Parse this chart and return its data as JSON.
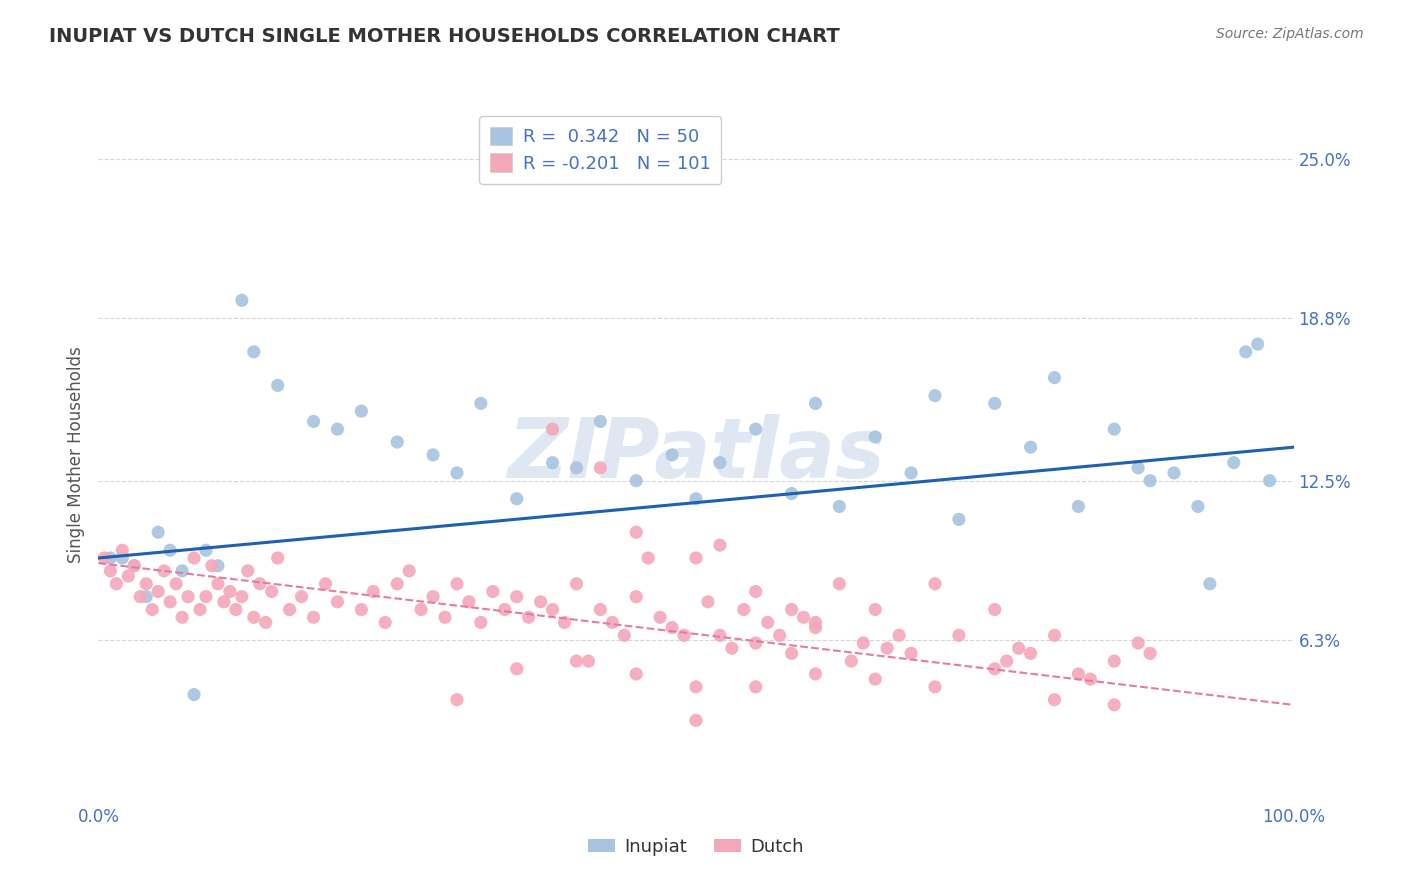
{
  "title": "INUPIAT VS DUTCH SINGLE MOTHER HOUSEHOLDS CORRELATION CHART",
  "source_text": "Source: ZipAtlas.com",
  "ylabel": "Single Mother Households",
  "xlim": [
    0,
    100
  ],
  "ylim": [
    0,
    27
  ],
  "yticks": [
    6.3,
    12.5,
    18.8,
    25.0
  ],
  "ytick_labels": [
    "6.3%",
    "12.5%",
    "18.8%",
    "25.0%"
  ],
  "xticks": [
    0,
    100
  ],
  "xtick_labels": [
    "0.0%",
    "100.0%"
  ],
  "inupiat_color": "#a8c4e0",
  "dutch_color": "#f4a7b9",
  "inupiat_line_color": "#2060b0",
  "dutch_line_color": "#e87aa0",
  "inupiat_r": "0.342",
  "inupiat_n": "50",
  "dutch_r": "-0.201",
  "dutch_n": "101",
  "inupiat_line_y0": 9.5,
  "inupiat_line_y1": 13.8,
  "dutch_line_y0": 9.3,
  "dutch_line_y1": 3.8,
  "inupiat_scatter": [
    [
      1,
      9.5
    ],
    [
      3,
      9.2
    ],
    [
      5,
      10.5
    ],
    [
      7,
      9.0
    ],
    [
      9,
      9.8
    ],
    [
      12,
      19.5
    ],
    [
      13,
      17.5
    ],
    [
      15,
      16.2
    ],
    [
      18,
      14.8
    ],
    [
      20,
      14.5
    ],
    [
      22,
      15.2
    ],
    [
      25,
      14.0
    ],
    [
      28,
      13.5
    ],
    [
      30,
      12.8
    ],
    [
      32,
      15.5
    ],
    [
      35,
      11.8
    ],
    [
      38,
      13.2
    ],
    [
      40,
      13.0
    ],
    [
      42,
      14.8
    ],
    [
      45,
      12.5
    ],
    [
      48,
      13.5
    ],
    [
      50,
      11.8
    ],
    [
      52,
      13.2
    ],
    [
      55,
      14.5
    ],
    [
      58,
      12.0
    ],
    [
      60,
      15.5
    ],
    [
      62,
      11.5
    ],
    [
      65,
      14.2
    ],
    [
      68,
      12.8
    ],
    [
      70,
      15.8
    ],
    [
      72,
      11.0
    ],
    [
      75,
      15.5
    ],
    [
      78,
      13.8
    ],
    [
      80,
      16.5
    ],
    [
      82,
      11.5
    ],
    [
      85,
      14.5
    ],
    [
      87,
      13.0
    ],
    [
      88,
      12.5
    ],
    [
      90,
      12.8
    ],
    [
      92,
      11.5
    ],
    [
      93,
      8.5
    ],
    [
      95,
      13.2
    ],
    [
      96,
      17.5
    ],
    [
      97,
      17.8
    ],
    [
      98,
      12.5
    ],
    [
      2,
      9.5
    ],
    [
      6,
      9.8
    ],
    [
      10,
      9.2
    ],
    [
      4,
      8.0
    ],
    [
      8,
      4.2
    ]
  ],
  "dutch_scatter": [
    [
      0.5,
      9.5
    ],
    [
      1,
      9.0
    ],
    [
      1.5,
      8.5
    ],
    [
      2,
      9.8
    ],
    [
      2.5,
      8.8
    ],
    [
      3,
      9.2
    ],
    [
      3.5,
      8.0
    ],
    [
      4,
      8.5
    ],
    [
      4.5,
      7.5
    ],
    [
      5,
      8.2
    ],
    [
      5.5,
      9.0
    ],
    [
      6,
      7.8
    ],
    [
      6.5,
      8.5
    ],
    [
      7,
      7.2
    ],
    [
      7.5,
      8.0
    ],
    [
      8,
      9.5
    ],
    [
      8.5,
      7.5
    ],
    [
      9,
      8.0
    ],
    [
      9.5,
      9.2
    ],
    [
      10,
      8.5
    ],
    [
      10.5,
      7.8
    ],
    [
      11,
      8.2
    ],
    [
      11.5,
      7.5
    ],
    [
      12,
      8.0
    ],
    [
      12.5,
      9.0
    ],
    [
      13,
      7.2
    ],
    [
      13.5,
      8.5
    ],
    [
      14,
      7.0
    ],
    [
      14.5,
      8.2
    ],
    [
      15,
      9.5
    ],
    [
      16,
      7.5
    ],
    [
      17,
      8.0
    ],
    [
      18,
      7.2
    ],
    [
      19,
      8.5
    ],
    [
      20,
      7.8
    ],
    [
      22,
      7.5
    ],
    [
      23,
      8.2
    ],
    [
      24,
      7.0
    ],
    [
      25,
      8.5
    ],
    [
      26,
      9.0
    ],
    [
      27,
      7.5
    ],
    [
      28,
      8.0
    ],
    [
      29,
      7.2
    ],
    [
      30,
      8.5
    ],
    [
      31,
      7.8
    ],
    [
      32,
      7.0
    ],
    [
      33,
      8.2
    ],
    [
      34,
      7.5
    ],
    [
      35,
      8.0
    ],
    [
      36,
      7.2
    ],
    [
      37,
      7.8
    ],
    [
      38,
      7.5
    ],
    [
      39,
      7.0
    ],
    [
      40,
      8.5
    ],
    [
      41,
      5.5
    ],
    [
      42,
      7.5
    ],
    [
      43,
      7.0
    ],
    [
      44,
      6.5
    ],
    [
      45,
      8.0
    ],
    [
      46,
      9.5
    ],
    [
      47,
      7.2
    ],
    [
      48,
      6.8
    ],
    [
      49,
      6.5
    ],
    [
      50,
      4.5
    ],
    [
      51,
      7.8
    ],
    [
      52,
      6.5
    ],
    [
      53,
      6.0
    ],
    [
      54,
      7.5
    ],
    [
      55,
      6.2
    ],
    [
      56,
      7.0
    ],
    [
      57,
      6.5
    ],
    [
      58,
      5.8
    ],
    [
      59,
      7.2
    ],
    [
      60,
      6.8
    ],
    [
      62,
      8.5
    ],
    [
      63,
      5.5
    ],
    [
      64,
      6.2
    ],
    [
      65,
      7.5
    ],
    [
      66,
      6.0
    ],
    [
      67,
      6.5
    ],
    [
      68,
      5.8
    ],
    [
      70,
      8.5
    ],
    [
      72,
      6.5
    ],
    [
      75,
      7.5
    ],
    [
      76,
      5.5
    ],
    [
      77,
      6.0
    ],
    [
      78,
      5.8
    ],
    [
      80,
      6.5
    ],
    [
      82,
      5.0
    ],
    [
      83,
      4.8
    ],
    [
      85,
      5.5
    ],
    [
      87,
      6.2
    ],
    [
      88,
      5.8
    ],
    [
      38,
      14.5
    ],
    [
      42,
      13.0
    ],
    [
      45,
      10.5
    ],
    [
      50,
      9.5
    ],
    [
      52,
      10.0
    ],
    [
      55,
      8.2
    ],
    [
      58,
      7.5
    ],
    [
      60,
      7.0
    ],
    [
      30,
      4.0
    ],
    [
      35,
      5.2
    ],
    [
      40,
      5.5
    ],
    [
      45,
      5.0
    ],
    [
      50,
      3.2
    ],
    [
      55,
      4.5
    ],
    [
      60,
      5.0
    ],
    [
      65,
      4.8
    ],
    [
      70,
      4.5
    ],
    [
      75,
      5.2
    ],
    [
      80,
      4.0
    ],
    [
      85,
      3.8
    ]
  ],
  "watermark": "ZIPatlas",
  "watermark_color": "#c8d8ea",
  "background_color": "#ffffff",
  "grid_color": "#cccccc",
  "title_color": "#333333",
  "axis_label_color": "#555555",
  "tick_label_color": "#4472c4",
  "source_color": "#777777",
  "legend_text_color": "#4472c4",
  "legend_label_color": "#333333"
}
